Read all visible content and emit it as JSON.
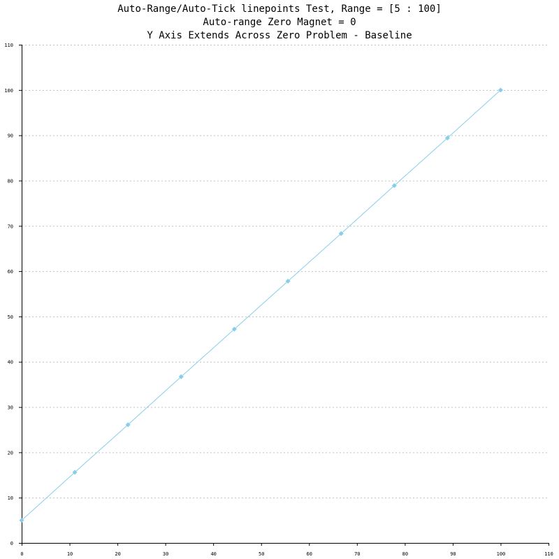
{
  "chart_data": {
    "type": "line",
    "title_lines": [
      "Auto-Range/Auto-Tick linepoints Test, Range = [5 : 100]",
      "Auto-range Zero Magnet = 0",
      "Y Axis Extends Across Zero Problem - Baseline"
    ],
    "xlabel": "",
    "ylabel": "",
    "xlim": [
      0,
      110
    ],
    "ylim": [
      0,
      110
    ],
    "x_ticks": [
      0,
      10,
      20,
      30,
      40,
      50,
      60,
      70,
      80,
      90,
      100,
      110
    ],
    "y_ticks": [
      0,
      10,
      20,
      30,
      40,
      50,
      60,
      70,
      80,
      90,
      100,
      110
    ],
    "grid": {
      "horizontal": true,
      "vertical": false,
      "style": "dotted",
      "color": "#c0c0c0"
    },
    "series": [
      {
        "color": "#87ceeb",
        "marker": "diamond",
        "x": [
          0,
          11.1,
          22.2,
          33.3,
          44.4,
          55.6,
          66.7,
          77.8,
          88.9,
          100
        ],
        "y": [
          5,
          15.6,
          26.1,
          36.7,
          47.2,
          57.8,
          68.3,
          78.9,
          89.4,
          100
        ]
      }
    ]
  }
}
